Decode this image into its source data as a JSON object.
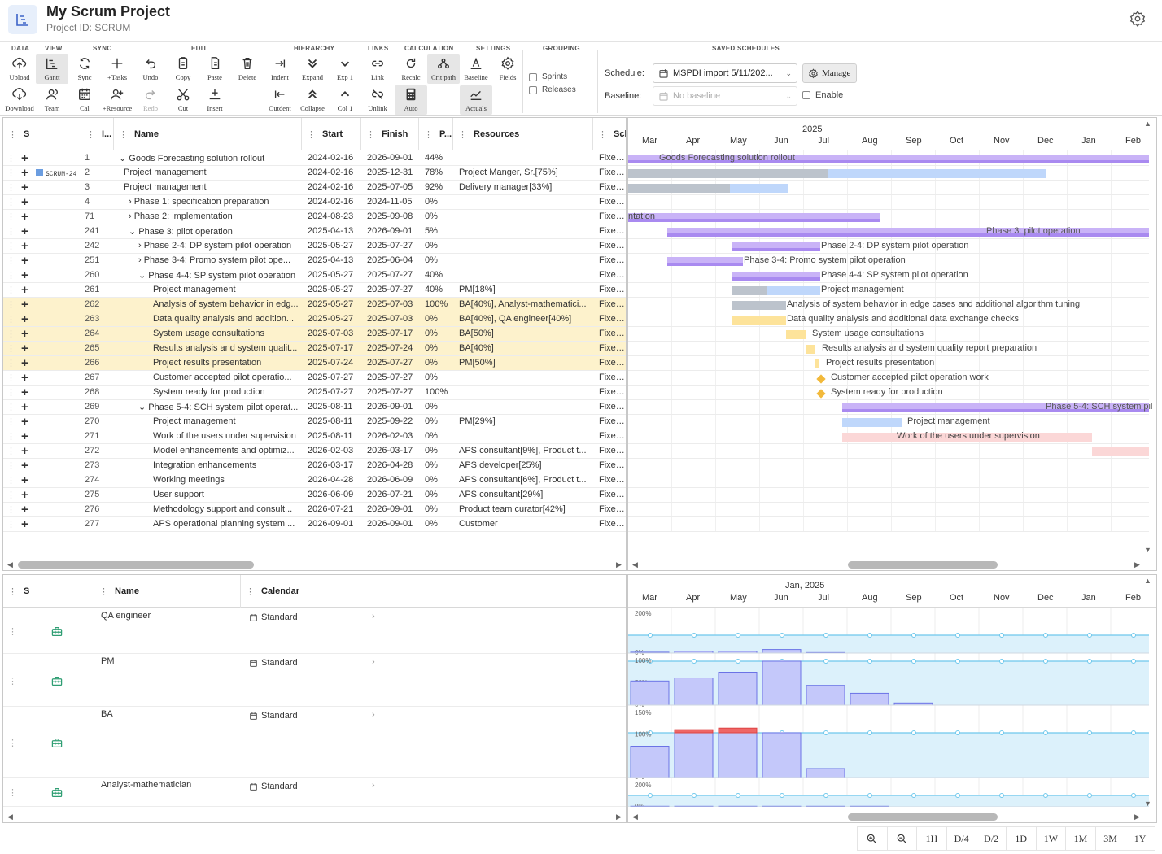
{
  "project": {
    "title": "My Scrum Project",
    "id_label": "Project ID: SCRUM"
  },
  "toolbar": {
    "groups": [
      "DATA",
      "VIEW",
      "SYNC",
      "EDIT",
      "HIERARCHY",
      "LINKS",
      "CALCULATION",
      "SETTINGS",
      "GROUPING",
      "SAVED SCHEDULES"
    ],
    "buttons": [
      "Upload",
      "Download",
      "Gantt",
      "Team",
      "Sync",
      "Cal",
      "+Tasks",
      "+Resource",
      "Undo",
      "Redo",
      "Copy",
      "Cut",
      "Paste",
      "Insert",
      "Delete",
      "Indent",
      "Outdent",
      "Expand",
      "Collapse",
      "Exp 1",
      "Col 1",
      "Link",
      "Unlink",
      "Recalc",
      "Auto",
      "Crit path",
      "Baseline",
      "Actuals",
      "Fields"
    ],
    "grouping": {
      "sprints": "Sprints",
      "releases": "Releases"
    },
    "schedule_label": "Schedule:",
    "schedule_value": "MSPDI import 5/11/202...",
    "manage": "Manage",
    "baseline_label": "Baseline:",
    "baseline_value": "No baseline",
    "enable": "Enable"
  },
  "task_grid": {
    "columns": [
      "S",
      "I...",
      "Name",
      "Start",
      "Finish",
      "P...",
      "Resources",
      "Sch"
    ],
    "rows": [
      {
        "badge": "",
        "id": "1",
        "name": "⌄ Goods Forecasting solution rollout",
        "start": "2024-02-16",
        "finish": "2026-09-01",
        "pct": "44%",
        "res": "",
        "sch": "Fixed d"
      },
      {
        "badge": "SCRUM-24",
        "id": "2",
        "name": "Project management",
        "start": "2024-02-16",
        "finish": "2025-12-31",
        "pct": "78%",
        "res": "Project Manger, Sr.[75%]",
        "sch": "Fixed d"
      },
      {
        "badge": "",
        "id": "3",
        "name": "Project management",
        "start": "2024-02-16",
        "finish": "2025-07-05",
        "pct": "92%",
        "res": "Delivery manager[33%]",
        "sch": "Fixed d"
      },
      {
        "badge": "",
        "id": "4",
        "name": "› Phase 1: specification preparation",
        "start": "2024-02-16",
        "finish": "2024-11-05",
        "pct": "0%",
        "res": "",
        "sch": "Fixed d"
      },
      {
        "badge": "",
        "id": "71",
        "name": "› Phase 2: implementation",
        "start": "2024-08-23",
        "finish": "2025-09-08",
        "pct": "0%",
        "res": "",
        "sch": "Fixed d"
      },
      {
        "badge": "",
        "id": "241",
        "name": "⌄ Phase 3: pilot operation",
        "start": "2025-04-13",
        "finish": "2026-09-01",
        "pct": "5%",
        "res": "",
        "sch": "Fixed d"
      },
      {
        "badge": "",
        "id": "242",
        "name": "› Phase 2-4: DP system pilot operation",
        "start": "2025-05-27",
        "finish": "2025-07-27",
        "pct": "0%",
        "res": "",
        "sch": "Fixed d"
      },
      {
        "badge": "",
        "id": "251",
        "name": "› Phase 3-4: Promo system pilot ope...",
        "start": "2025-04-13",
        "finish": "2025-06-04",
        "pct": "0%",
        "res": "",
        "sch": "Fixed d"
      },
      {
        "badge": "",
        "id": "260",
        "name": "⌄ Phase 4-4: SP system pilot operation",
        "start": "2025-05-27",
        "finish": "2025-07-27",
        "pct": "40%",
        "res": "",
        "sch": "Fixed d"
      },
      {
        "badge": "",
        "id": "261",
        "name": "Project management",
        "start": "2025-05-27",
        "finish": "2025-07-27",
        "pct": "40%",
        "res": "PM[18%]",
        "sch": "Fixed d"
      },
      {
        "badge": "",
        "id": "262",
        "name": "Analysis of system behavior in edg...",
        "start": "2025-05-27",
        "finish": "2025-07-03",
        "pct": "100%",
        "res": "BA[40%], Analyst-mathematici...",
        "sch": "Fixed d"
      },
      {
        "badge": "",
        "id": "263",
        "name": "Data quality analysis and addition...",
        "start": "2025-05-27",
        "finish": "2025-07-03",
        "pct": "0%",
        "res": "BA[40%], QA engineer[40%]",
        "sch": "Fixed d"
      },
      {
        "badge": "",
        "id": "264",
        "name": "System usage consultations",
        "start": "2025-07-03",
        "finish": "2025-07-17",
        "pct": "0%",
        "res": "BA[50%]",
        "sch": "Fixed d"
      },
      {
        "badge": "",
        "id": "265",
        "name": "Results analysis and system qualit...",
        "start": "2025-07-17",
        "finish": "2025-07-24",
        "pct": "0%",
        "res": "BA[40%]",
        "sch": "Fixed d"
      },
      {
        "badge": "",
        "id": "266",
        "name": "Project results presentation",
        "start": "2025-07-24",
        "finish": "2025-07-27",
        "pct": "0%",
        "res": "PM[50%]",
        "sch": "Fixed d"
      },
      {
        "badge": "",
        "id": "267",
        "name": "Customer accepted pilot operatio...",
        "start": "2025-07-27",
        "finish": "2025-07-27",
        "pct": "0%",
        "res": "",
        "sch": "Fixed d"
      },
      {
        "badge": "",
        "id": "268",
        "name": "System ready for production",
        "start": "2025-07-27",
        "finish": "2025-07-27",
        "pct": "100%",
        "res": "",
        "sch": "Fixed d"
      },
      {
        "badge": "",
        "id": "269",
        "name": "⌄ Phase 5-4: SCH system pilot operat...",
        "start": "2025-08-11",
        "finish": "2026-09-01",
        "pct": "0%",
        "res": "",
        "sch": "Fixed d"
      },
      {
        "badge": "",
        "id": "270",
        "name": "Project management",
        "start": "2025-08-11",
        "finish": "2025-09-22",
        "pct": "0%",
        "res": "PM[29%]",
        "sch": "Fixed d"
      },
      {
        "badge": "",
        "id": "271",
        "name": "Work of the users under supervision",
        "start": "2025-08-11",
        "finish": "2026-02-03",
        "pct": "0%",
        "res": "",
        "sch": "Fixed d"
      },
      {
        "badge": "",
        "id": "272",
        "name": "Model enhancements and optimiz...",
        "start": "2026-02-03",
        "finish": "2026-03-17",
        "pct": "0%",
        "res": "APS consultant[9%], Product t...",
        "sch": "Fixed d"
      },
      {
        "badge": "",
        "id": "273",
        "name": "Integration enhancements",
        "start": "2026-03-17",
        "finish": "2026-04-28",
        "pct": "0%",
        "res": "APS developer[25%]",
        "sch": "Fixed d"
      },
      {
        "badge": "",
        "id": "274",
        "name": "Working meetings",
        "start": "2026-04-28",
        "finish": "2026-06-09",
        "pct": "0%",
        "res": "APS consultant[6%], Product t...",
        "sch": "Fixed d"
      },
      {
        "badge": "",
        "id": "275",
        "name": "User support",
        "start": "2026-06-09",
        "finish": "2026-07-21",
        "pct": "0%",
        "res": "APS consultant[29%]",
        "sch": "Fixed d"
      },
      {
        "badge": "",
        "id": "276",
        "name": "Methodology support and consult...",
        "start": "2026-07-21",
        "finish": "2026-09-01",
        "pct": "0%",
        "res": "Product team curator[42%]",
        "sch": "Fixed d"
      },
      {
        "badge": "",
        "id": "277",
        "name": "APS operational planning system ...",
        "start": "2026-09-01",
        "finish": "2026-09-01",
        "pct": "0%",
        "res": "Customer",
        "sch": "Fixed d"
      }
    ]
  },
  "gantt": {
    "year": "2025",
    "months": [
      "Mar",
      "Apr",
      "May",
      "Jun",
      "Jul",
      "Aug",
      "Sep",
      "Oct",
      "Nov",
      "Dec",
      "Jan",
      "Feb"
    ],
    "labels": [
      "Goods Forecasting solution rollout",
      "ntation",
      "Phase 3: pilot operation",
      "Phase 2-4: DP system pilot operation",
      "Phase 3-4: Promo system pilot operation",
      "Phase 4-4: SP system pilot operation",
      "Project management",
      "Analysis of system behavior in edge cases and additional algorithm tuning",
      "Data quality analysis and additional data exchange checks",
      "System usage consultations",
      "Results analysis and system quality report preparation",
      "Project results presentation",
      "Customer accepted pilot operation work",
      "System ready for production",
      "Phase 5-4: SCH system pil",
      "Project management",
      "Work of the users under supervision"
    ]
  },
  "resource_grid": {
    "columns": [
      "S",
      "Name",
      "Calendar"
    ],
    "rows": [
      {
        "name": "QA engineer",
        "calendar": "Standard"
      },
      {
        "name": "PM",
        "calendar": "Standard"
      },
      {
        "name": "BA",
        "calendar": "Standard"
      },
      {
        "name": "Analyst-mathematician",
        "calendar": "Standard"
      }
    ]
  },
  "histogram": {
    "period": "Jan, 2025",
    "months": [
      "Mar",
      "Apr",
      "May",
      "Jun",
      "Jul",
      "Aug",
      "Sep",
      "Oct",
      "Nov",
      "Dec",
      "Jan",
      "Feb"
    ],
    "panels": [
      {
        "ticks": [
          "200%",
          "0%"
        ],
        "loads": [
          0.05,
          0.1,
          0.1,
          0.2,
          0.03
        ]
      },
      {
        "ticks": [
          "100%",
          "50%",
          "0%"
        ],
        "loads": [
          0.55,
          0.62,
          0.75,
          1.0,
          0.45,
          0.27,
          0.05
        ]
      },
      {
        "ticks": [
          "150%",
          "100%",
          "50%",
          "0%"
        ],
        "loads": [
          0.7,
          1.2,
          1.3,
          1.0,
          0.2
        ]
      },
      {
        "ticks": [
          "200%",
          "0%"
        ],
        "loads": [
          0.05,
          0.05,
          0.05,
          0.05,
          0.05,
          0.05
        ]
      }
    ]
  },
  "zoom": [
    "1H",
    "D/4",
    "D/2",
    "1D",
    "1W",
    "1M",
    "3M",
    "1Y"
  ]
}
